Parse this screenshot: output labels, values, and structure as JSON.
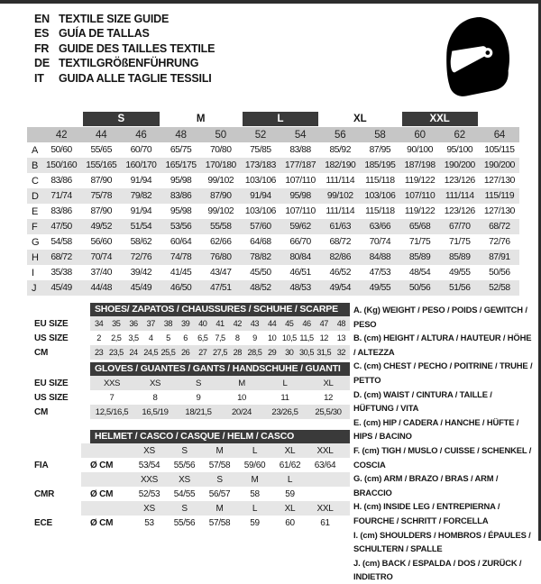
{
  "colors": {
    "header_bar": "#3a3a3a",
    "numbers_row": "#c6c6c6",
    "stripe_row": "#e4e4e4",
    "sub_shaded_row": "#e3e3e3",
    "frame": "#2d2d2d",
    "helmet_icon": "#000000"
  },
  "header": {
    "languages": [
      {
        "code": "EN",
        "label": "TEXTILE SIZE GUIDE"
      },
      {
        "code": "ES",
        "label": "GUÍA DE TALLAS"
      },
      {
        "code": "FR",
        "label": "GUIDE DES TAILLES TEXTILE"
      },
      {
        "code": "DE",
        "label": "TEXTILGRÖßENFÜHRUNG"
      },
      {
        "code": "IT",
        "label": "GUIDA ALLE TAGLIE TESSILI"
      }
    ],
    "icon": "racing-helmet-icon"
  },
  "main_table": {
    "size_groups": [
      {
        "label": "S",
        "dark": true,
        "col": 1
      },
      {
        "label": "M",
        "dark": false,
        "col": 3
      },
      {
        "label": "L",
        "dark": true,
        "col": 5
      },
      {
        "label": "XL",
        "dark": false,
        "col": 7
      },
      {
        "label": "XXL",
        "dark": true,
        "col": 9
      }
    ],
    "columns": [
      "42",
      "44",
      "46",
      "48",
      "50",
      "52",
      "54",
      "56",
      "58",
      "60",
      "62",
      "64"
    ],
    "rows": [
      {
        "label": "A",
        "values": [
          "50/60",
          "55/65",
          "60/70",
          "65/75",
          "70/80",
          "75/85",
          "83/88",
          "85/92",
          "87/95",
          "90/100",
          "95/100",
          "105/115"
        ]
      },
      {
        "label": "B",
        "values": [
          "150/160",
          "155/165",
          "160/170",
          "165/175",
          "170/180",
          "173/183",
          "177/187",
          "182/190",
          "185/195",
          "187/198",
          "190/200",
          "190/200"
        ]
      },
      {
        "label": "C",
        "values": [
          "83/86",
          "87/90",
          "91/94",
          "95/98",
          "99/102",
          "103/106",
          "107/110",
          "111/114",
          "115/118",
          "119/122",
          "123/126",
          "127/130"
        ]
      },
      {
        "label": "D",
        "values": [
          "71/74",
          "75/78",
          "79/82",
          "83/86",
          "87/90",
          "91/94",
          "95/98",
          "99/102",
          "103/106",
          "107/110",
          "111/114",
          "115/119"
        ]
      },
      {
        "label": "E",
        "values": [
          "83/86",
          "87/90",
          "91/94",
          "95/98",
          "99/102",
          "103/106",
          "107/110",
          "111/114",
          "115/118",
          "119/122",
          "123/126",
          "127/130"
        ]
      },
      {
        "label": "F",
        "values": [
          "47/50",
          "49/52",
          "51/54",
          "53/56",
          "55/58",
          "57/60",
          "59/62",
          "61/63",
          "63/66",
          "65/68",
          "67/70",
          "68/72"
        ]
      },
      {
        "label": "G",
        "values": [
          "54/58",
          "56/60",
          "58/62",
          "60/64",
          "62/66",
          "64/68",
          "66/70",
          "68/72",
          "70/74",
          "71/75",
          "71/75",
          "72/76"
        ]
      },
      {
        "label": "H",
        "values": [
          "68/72",
          "70/74",
          "72/76",
          "74/78",
          "76/80",
          "78/82",
          "80/84",
          "82/86",
          "84/88",
          "85/89",
          "85/89",
          "87/91"
        ]
      },
      {
        "label": "I",
        "values": [
          "35/38",
          "37/40",
          "39/42",
          "41/45",
          "43/47",
          "45/50",
          "46/51",
          "46/52",
          "47/53",
          "48/54",
          "49/55",
          "50/56"
        ]
      },
      {
        "label": "J",
        "values": [
          "45/49",
          "44/48",
          "45/49",
          "46/50",
          "47/51",
          "48/52",
          "48/53",
          "49/54",
          "49/55",
          "50/56",
          "51/56",
          "52/58"
        ]
      }
    ]
  },
  "shoes_table": {
    "title": "SHOES/ ZAPATOS / CHAUSSURES / SCHUHE / SCARPE",
    "rows": [
      {
        "label": "EU SIZE",
        "shaded": true,
        "values": [
          "34",
          "35",
          "36",
          "37",
          "38",
          "39",
          "40",
          "41",
          "42",
          "43",
          "44",
          "45",
          "46",
          "47",
          "48"
        ]
      },
      {
        "label": "US SIZE",
        "shaded": false,
        "values": [
          "2",
          "2,5",
          "3,5",
          "4",
          "5",
          "6",
          "6,5",
          "7,5",
          "8",
          "9",
          "10",
          "10,5",
          "11,5",
          "12",
          "13"
        ]
      },
      {
        "label": "CM",
        "shaded": true,
        "values": [
          "23",
          "23,5",
          "24",
          "24,5",
          "25,5",
          "26",
          "27",
          "27,5",
          "28",
          "28,5",
          "29",
          "30",
          "30,5",
          "31,5",
          "32"
        ]
      }
    ]
  },
  "gloves_table": {
    "title": "GLOVES / GUANTES / GANTS / HANDSCHUHE / GUANTI",
    "rows": [
      {
        "label": "EU SIZE",
        "shaded": true,
        "values": [
          "XXS",
          "XS",
          "S",
          "M",
          "L",
          "XL"
        ]
      },
      {
        "label": "US SIZE",
        "shaded": false,
        "values": [
          "7",
          "8",
          "9",
          "10",
          "11",
          "12"
        ]
      },
      {
        "label": "CM",
        "shaded": true,
        "values": [
          "12,5/16,5",
          "16,5/19",
          "18/21,5",
          "20/24",
          "23/26,5",
          "25,5/30"
        ]
      }
    ]
  },
  "helmet_table": {
    "title": "HELMET / CASCO / CASQUE / HELM / CASCO",
    "sections": [
      {
        "label": "FIA",
        "unit": "Ø CM",
        "sizes": [
          "XS",
          "S",
          "M",
          "L",
          "XL",
          "XXL"
        ],
        "values": [
          "53/54",
          "55/56",
          "57/58",
          "59/60",
          "61/62",
          "63/64"
        ]
      },
      {
        "label": "CMR",
        "unit": "Ø CM",
        "sizes": [
          "XXS",
          "XS",
          "S",
          "M",
          "L"
        ],
        "values": [
          "52/53",
          "54/55",
          "56/57",
          "58",
          "59"
        ]
      },
      {
        "label": "ECE",
        "unit": "Ø CM",
        "sizes": [
          "XS",
          "S",
          "M",
          "L",
          "XL",
          "XXL"
        ],
        "values": [
          "53",
          "55/56",
          "57/58",
          "59",
          "60",
          "61"
        ]
      }
    ]
  },
  "legend": {
    "items": [
      "A. (Kg) WEIGHT / PESO / POIDS / GEWITCH / PESO",
      "B. (cm) HEIGHT / ALTURA / HAUTEUR / HÖHE / ALTEZZA",
      "C. (cm) CHEST / PECHO / POITRINE / TRUHE / PETTO",
      "D. (cm) WAIST / CINTURA / TAILLE / HÜFTUNG / VITA",
      "E. (cm) HIP / CADERA / HANCHE / HÜFTE / HIPS / BACINO",
      "F. (cm) TIGH / MUSLO / CUISSE / SCHENKEL / COSCIA",
      "G. (cm) ARM / BRAZO / BRAS / ARM / BRACCIO",
      "H. (cm) INSIDE LEG / ENTREPIERNA / FOURCHE / SCHRITT / FORCELLA",
      "I. (cm) SHOULDERS / HOMBROS / ÉPAULES / SCHULTERN / SPALLE",
      "J. (cm) BACK / ESPALDA / DOS / ZURÜCK / INDIETRO"
    ]
  }
}
